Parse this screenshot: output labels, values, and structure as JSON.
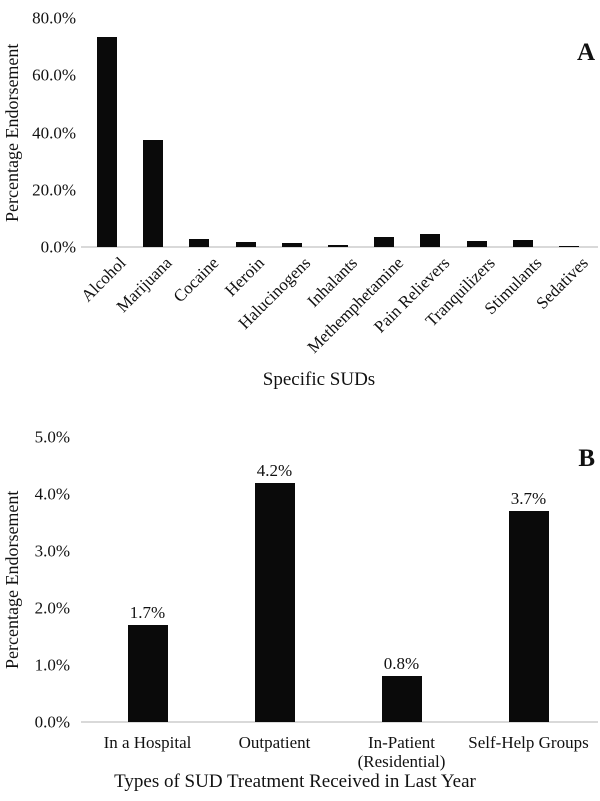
{
  "figure": {
    "background": "#ffffff",
    "bar_color": "#0a0a0a",
    "axis_line_color": "#d9d9d9",
    "text_color": "#111111"
  },
  "chart_data": [
    {
      "type": "bar",
      "panel": "A",
      "title": "",
      "xlabel": "Specific SUDs",
      "ylabel": "Percentage Endorsement",
      "categories": [
        "Alcohol",
        "Marijuana",
        "Cocaine",
        "Heroin",
        "Halucinogens",
        "Inhalants",
        "Methemphetamine",
        "Pain Relievers",
        "Tranquilizers",
        "Stimulants",
        "Sedatives"
      ],
      "values": [
        73.3,
        37.4,
        2.9,
        1.6,
        1.5,
        0.7,
        3.4,
        4.5,
        2.2,
        2.4,
        0.5
      ],
      "ylim": [
        0,
        80
      ],
      "yticks": [
        "80.0%",
        "60.0%",
        "40.0%",
        "20.0%",
        "0.0%"
      ],
      "grid": false,
      "legend": "none",
      "data_labels": false,
      "xlabel_rotation": -45
    },
    {
      "type": "bar",
      "panel": "B",
      "title": "",
      "xlabel": "Types of SUD Treatment Received in Last Year",
      "ylabel": "Percentage Endorsement",
      "categories": [
        "In a Hospital",
        "Outpatient",
        "In-Patient (Residential)",
        "Self-Help Groups"
      ],
      "values": [
        1.7,
        4.2,
        0.8,
        3.7
      ],
      "labels": [
        "1.7%",
        "4.2%",
        "0.8%",
        "3.7%"
      ],
      "ylim": [
        0,
        5
      ],
      "yticks": [
        "5.0%",
        "4.0%",
        "3.0%",
        "2.0%",
        "1.0%",
        "0.0%"
      ],
      "grid": false,
      "legend": "none",
      "data_labels": true,
      "xlabel_rotation": 0
    }
  ]
}
